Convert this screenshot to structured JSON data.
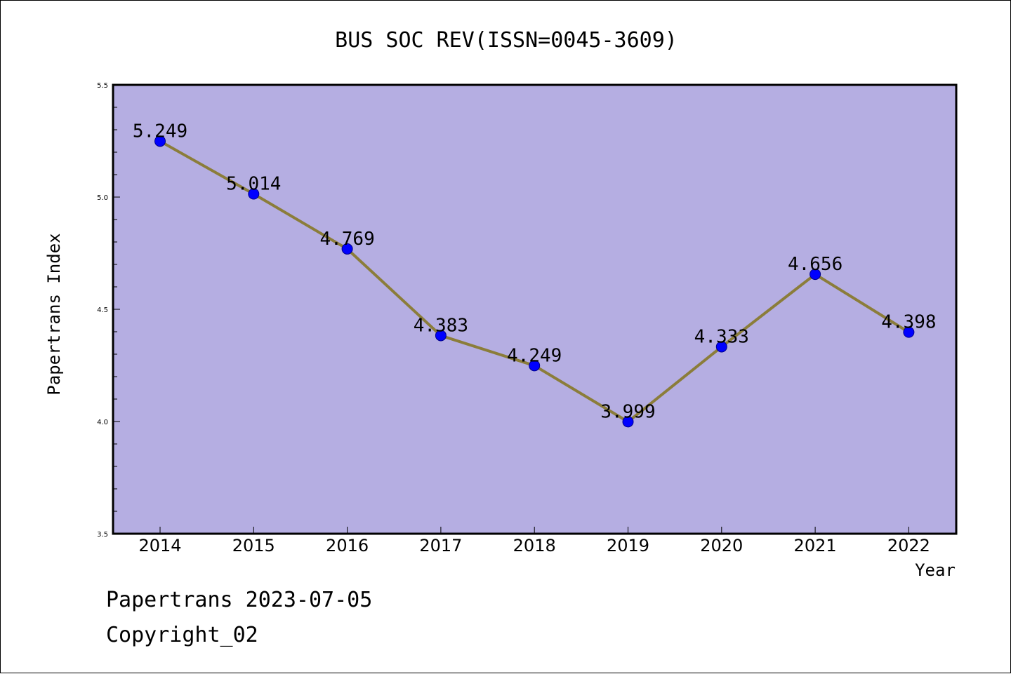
{
  "chart_data": {
    "type": "line",
    "title": "BUS SOC REV(ISSN=0045-3609)",
    "xlabel": "Year",
    "ylabel": "Papertrans Index",
    "categories": [
      "2014",
      "2015",
      "2016",
      "2017",
      "2018",
      "2019",
      "2020",
      "2021",
      "2022"
    ],
    "series": [
      {
        "values": [
          5.249,
          5.014,
          4.769,
          4.383,
          4.249,
          3.999,
          4.333,
          4.656,
          4.398
        ],
        "labels": [
          "5.249",
          "5.014",
          "4.769",
          "4.383",
          "4.249",
          "3.999",
          "4.333",
          "4.656",
          "4.398"
        ]
      }
    ],
    "ylim": [
      3.5,
      5.5
    ],
    "yticks": [
      "3.5",
      "4.0",
      "4.5",
      "5.0",
      "5.5"
    ],
    "grid": false,
    "colors": {
      "plot_background": "#b5aee2",
      "line": "#8b7d3a",
      "marker": "#0000ff",
      "marker_edge": "#00008b"
    }
  },
  "footer": {
    "line1": "Papertrans 2023-07-05",
    "line2": "Copyright_02"
  }
}
